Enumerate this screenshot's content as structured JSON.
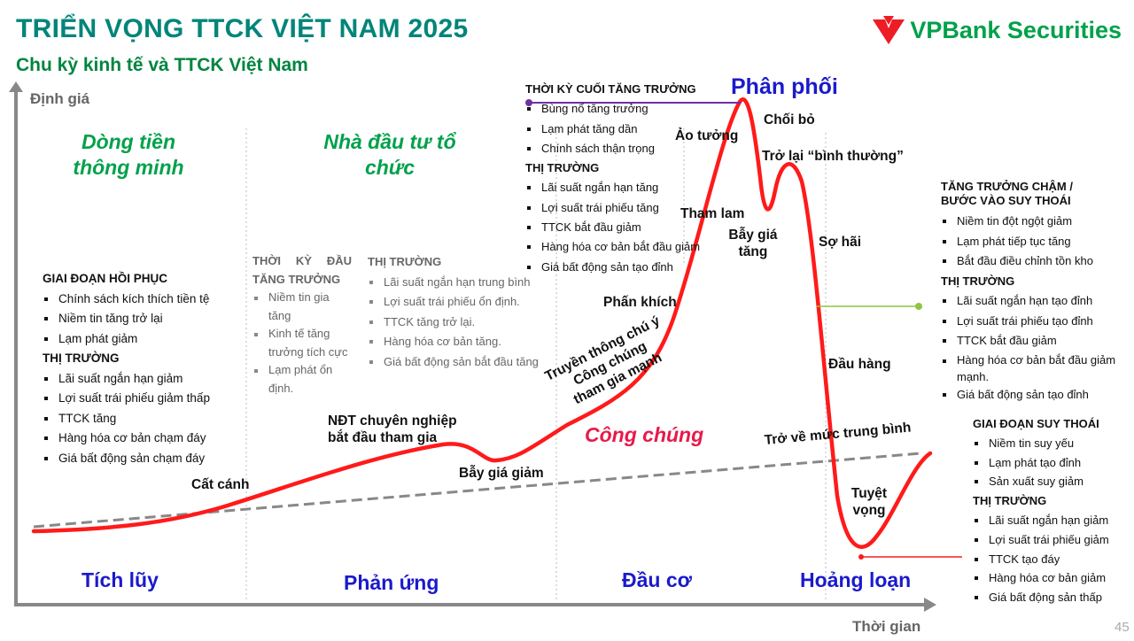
{
  "header": {
    "title": "TRIỂN VỌNG TTCK VIỆT NAM 2025",
    "subtitle": "Chu kỳ kinh tế và TTCK Việt Nam",
    "logo": "VPBank Securities"
  },
  "axes": {
    "y": "Định giá",
    "x": "Thời gian"
  },
  "top_labels": {
    "smart_money": "Dòng tiền thông minh",
    "institutional": "Nhà đầu tư tổ chức",
    "distribution": "Phân phối",
    "public": "Công chúng"
  },
  "phases": [
    "Tích lũy",
    "Phản ứng",
    "Đầu cơ",
    "Hoảng loạn"
  ],
  "curve_labels": {
    "takeoff": "Cất cánh",
    "pro_investors": "NĐT chuyên nghiệp bắt đầu tham gia",
    "bear_trap": "Bẫy giá giảm",
    "media": "Truyền thông chú ý",
    "public_join": "Công chúng tham gia mạnh",
    "euphoria": "Phấn khích",
    "greed": "Tham lam",
    "delusion": "Ảo tưởng",
    "bull_trap": "Bẫy giá tăng",
    "denial": "Chối bỏ",
    "return_normal": "Trở lại “bình thường”",
    "fear": "Sợ hãi",
    "capitulation": "Đầu hàng",
    "mean_reversion": "Trở về mức trung bình",
    "despair": "Tuyệt vọng"
  },
  "blocks": {
    "recovery": {
      "title": "GIAI ĐOẠN HỒI PHỤC",
      "items": [
        "Chính sách kích thích tiền tệ",
        "Niềm tin tăng trở lại",
        "Lạm phát giảm"
      ],
      "market_title": "THỊ TRƯỜNG",
      "market": [
        "Lãi suất ngắn hạn giảm",
        "Lợi suất trái phiếu giảm thấp",
        "TTCK tăng",
        "Hàng hóa cơ bản chạm đáy",
        "Giá bất động sản chạm đáy"
      ]
    },
    "early": {
      "title": "THỜI KỲ ĐẦU TĂNG TRƯỞNG",
      "items": [
        "Niềm tin gia tăng",
        "Kinh tế tăng trưởng tích cực",
        "Lạm phát ổn định."
      ],
      "market_title": "THỊ TRƯỜNG",
      "market": [
        "Lãi suất ngắn hạn trung bình",
        "Lợi suất trái phiếu ổn định.",
        "TTCK tăng trở lại.",
        "Hàng hóa cơ bản tăng.",
        "Giá bất động sản bắt đầu tăng"
      ]
    },
    "late": {
      "title": "THỜI KỲ CUỐI TĂNG TRƯỞNG",
      "items": [
        "Bùng nổ tăng trưởng",
        "Lạm phát tăng dần",
        "Chính sách thận trọng"
      ],
      "market_title": "THỊ TRƯỜNG",
      "market": [
        "Lãi suất ngắn hạn tăng",
        "Lợi suất trái phiếu tăng",
        "TTCK bắt đầu giảm",
        "Hàng hóa cơ bản bắt đầu giảm",
        "Giá bất động sản tạo đỉnh"
      ]
    },
    "slowdown": {
      "title": "TĂNG TRƯỞNG CHẬM / BƯỚC VÀO SUY THOÁI",
      "items": [
        "Niềm tin đột ngột giảm",
        "Lạm phát tiếp tục tăng",
        "Bắt đầu điều chỉnh tồn kho"
      ],
      "market_title": "THỊ TRƯỜNG",
      "market": [
        "Lãi suất ngắn hạn tạo đỉnh",
        "Lợi suất trái phiếu tạo đỉnh",
        "TTCK bắt đầu giảm",
        "Hàng hóa cơ bản bắt đầu giảm mạnh.",
        "Giá bất động sản tạo đỉnh"
      ]
    },
    "recession": {
      "title": "GIAI ĐOẠN SUY THOÁI",
      "items": [
        "Niềm tin suy yếu",
        "Lạm phát tạo đỉnh",
        "Sản xuất suy giảm"
      ],
      "market_title": "THỊ TRƯỜNG",
      "market": [
        "Lãi suất ngắn hạn giảm",
        "Lợi suất trái phiếu giảm",
        "TTCK tạo đáy",
        "Hàng hóa cơ bản giảm",
        "Giá bất động sản thấp"
      ]
    }
  },
  "page_number": "45",
  "colors": {
    "title": "#00857a",
    "green": "#00a14b",
    "phase": "#1a1acc",
    "curve": "#ff1a1a",
    "public": "#e8194a"
  }
}
